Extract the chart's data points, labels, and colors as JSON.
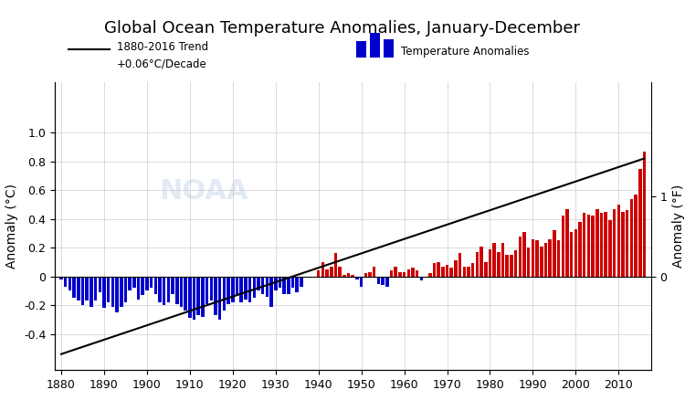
{
  "title": "Global Ocean Temperature Anomalies, January-December",
  "ylabel_left": "Anomaly (°C)",
  "ylabel_right": "Anomaly (°F)",
  "trend_label_line1": "1880-2016 Trend",
  "trend_label_line2": "+0.06°C/Decade",
  "anomaly_label": "Temperature Anomalies",
  "xlim": [
    1878.5,
    2017.5
  ],
  "ylim_c": [
    -0.65,
    1.35
  ],
  "background_color": "#ffffff",
  "bar_color_pos": "#cc0000",
  "bar_color_neg": "#0000cc",
  "grid_color": "#cccccc",
  "trend_start_year": 1880,
  "trend_end_year": 2016,
  "trend_slope": 0.006,
  "trend_intercept": -11.748,
  "years": [
    1880,
    1881,
    1882,
    1883,
    1884,
    1885,
    1886,
    1887,
    1888,
    1889,
    1890,
    1891,
    1892,
    1893,
    1894,
    1895,
    1896,
    1897,
    1898,
    1899,
    1900,
    1901,
    1902,
    1903,
    1904,
    1905,
    1906,
    1907,
    1908,
    1909,
    1910,
    1911,
    1912,
    1913,
    1914,
    1915,
    1916,
    1917,
    1918,
    1919,
    1920,
    1921,
    1922,
    1923,
    1924,
    1925,
    1926,
    1927,
    1928,
    1929,
    1930,
    1931,
    1932,
    1933,
    1934,
    1935,
    1936,
    1937,
    1938,
    1939,
    1940,
    1941,
    1942,
    1943,
    1944,
    1945,
    1946,
    1947,
    1948,
    1949,
    1950,
    1951,
    1952,
    1953,
    1954,
    1955,
    1956,
    1957,
    1958,
    1959,
    1960,
    1961,
    1962,
    1963,
    1964,
    1965,
    1966,
    1967,
    1968,
    1969,
    1970,
    1971,
    1972,
    1973,
    1974,
    1975,
    1976,
    1977,
    1978,
    1979,
    1980,
    1981,
    1982,
    1983,
    1984,
    1985,
    1986,
    1987,
    1988,
    1989,
    1990,
    1991,
    1992,
    1993,
    1994,
    1995,
    1996,
    1997,
    1998,
    1999,
    2000,
    2001,
    2002,
    2003,
    2004,
    2005,
    2006,
    2007,
    2008,
    2009,
    2010,
    2011,
    2012,
    2013,
    2014,
    2015,
    2016
  ],
  "anomalies": [
    -0.02,
    -0.07,
    -0.1,
    -0.15,
    -0.17,
    -0.2,
    -0.17,
    -0.21,
    -0.17,
    -0.11,
    -0.22,
    -0.18,
    -0.21,
    -0.25,
    -0.21,
    -0.18,
    -0.1,
    -0.08,
    -0.16,
    -0.13,
    -0.1,
    -0.08,
    -0.12,
    -0.18,
    -0.2,
    -0.18,
    -0.12,
    -0.19,
    -0.21,
    -0.24,
    -0.29,
    -0.3,
    -0.27,
    -0.28,
    -0.19,
    -0.17,
    -0.27,
    -0.3,
    -0.24,
    -0.19,
    -0.18,
    -0.13,
    -0.18,
    -0.16,
    -0.18,
    -0.15,
    -0.1,
    -0.12,
    -0.14,
    -0.21,
    -0.1,
    -0.08,
    -0.12,
    -0.12,
    -0.08,
    -0.11,
    -0.07,
    -0.01,
    0.0,
    0.0,
    0.04,
    0.1,
    0.05,
    0.07,
    0.16,
    0.07,
    0.01,
    0.02,
    0.01,
    -0.02,
    -0.07,
    0.02,
    0.03,
    0.07,
    -0.05,
    -0.06,
    -0.07,
    0.04,
    0.07,
    0.03,
    0.03,
    0.05,
    0.06,
    0.04,
    -0.03,
    -0.01,
    0.02,
    0.09,
    0.1,
    0.07,
    0.08,
    0.06,
    0.11,
    0.16,
    0.07,
    0.07,
    0.09,
    0.17,
    0.21,
    0.1,
    0.19,
    0.23,
    0.17,
    0.23,
    0.15,
    0.15,
    0.18,
    0.28,
    0.31,
    0.2,
    0.26,
    0.25,
    0.21,
    0.23,
    0.26,
    0.32,
    0.25,
    0.42,
    0.47,
    0.31,
    0.33,
    0.38,
    0.44,
    0.43,
    0.42,
    0.47,
    0.44,
    0.45,
    0.39,
    0.47,
    0.5,
    0.45,
    0.46,
    0.54,
    0.57,
    0.75,
    0.87
  ],
  "yticks_c": [
    -0.4,
    -0.2,
    0.0,
    0.2,
    0.4,
    0.6,
    0.8,
    1.0
  ],
  "xticks": [
    1880,
    1890,
    1900,
    1910,
    1920,
    1930,
    1940,
    1950,
    1960,
    1970,
    1980,
    1990,
    2000,
    2010
  ]
}
